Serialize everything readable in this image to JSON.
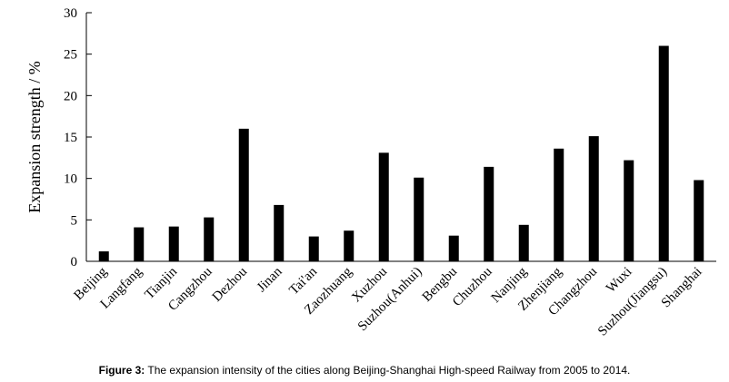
{
  "caption": {
    "label": "Figure 3:",
    "text": " The expansion intensity of the cities along Beijing-Shanghai High-speed Railway from 2005 to 2014."
  },
  "chart_data": {
    "type": "bar",
    "ylabel": "Expansion strength / %",
    "xlabel": "",
    "ylim": [
      0,
      30
    ],
    "yticks": [
      0,
      5,
      10,
      15,
      20,
      25,
      30
    ],
    "grid": false,
    "bar_color": "#000000",
    "categories": [
      "Beijing",
      "Langfang",
      "Tianjin",
      "Cangzhou",
      "Dezhou",
      "Jinan",
      "Tai'an",
      "Zaozhuang",
      "Xuzhou",
      "Suzhou(Anhui)",
      "Bengbu",
      "Chuzhou",
      "Nanjing",
      "Zhenjiang",
      "Changzhou",
      "Wuxi",
      "Suzhou(Jiangsu)",
      "Shanghai"
    ],
    "values": [
      1.2,
      4.1,
      4.2,
      5.3,
      16.0,
      6.8,
      3.0,
      3.7,
      13.1,
      10.1,
      3.1,
      11.4,
      4.4,
      13.6,
      15.1,
      12.2,
      26.0,
      9.8
    ]
  }
}
